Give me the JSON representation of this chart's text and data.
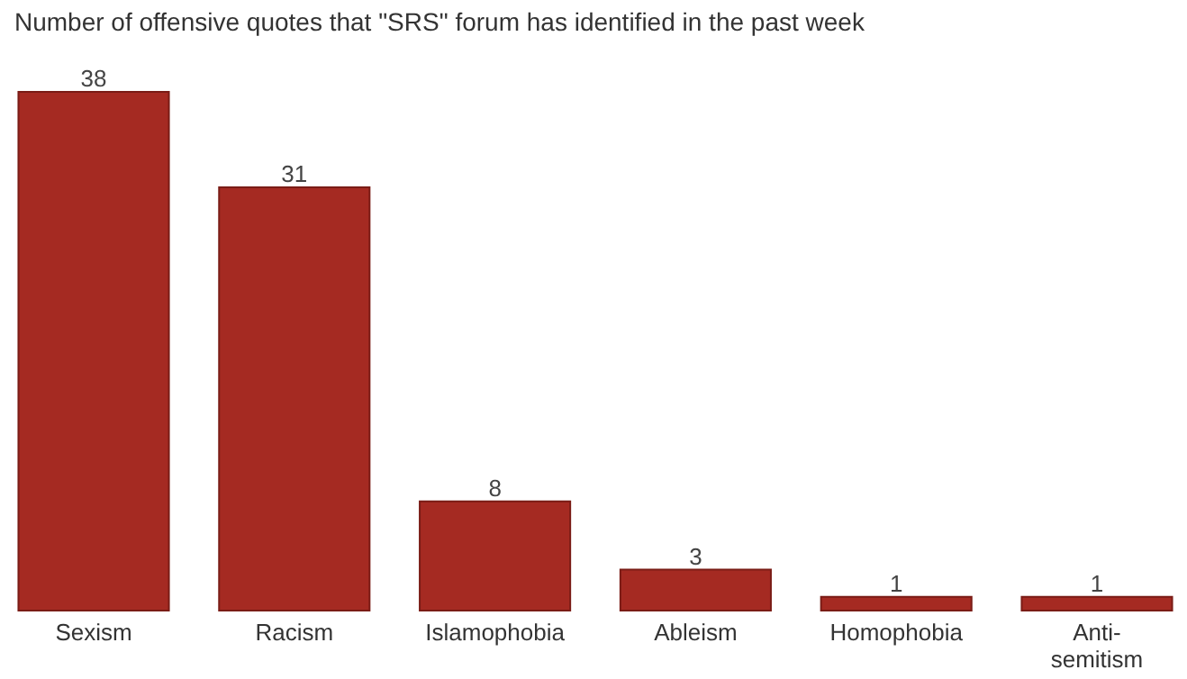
{
  "chart_data": {
    "type": "bar",
    "title": "Number of offensive quotes that \"SRS\" forum has identified in the past week",
    "categories": [
      "Sexism",
      "Racism",
      "Islamophobia",
      "Ableism",
      "Homophobia",
      "Anti-semitism"
    ],
    "values": [
      38,
      31,
      8,
      3,
      1,
      1
    ],
    "color": "#a52a22",
    "data_labels": true,
    "grid": false
  }
}
